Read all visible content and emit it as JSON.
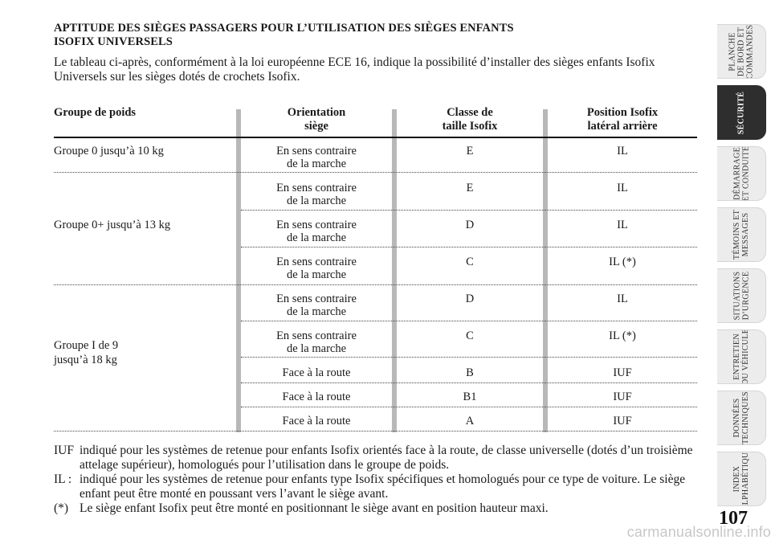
{
  "heading": {
    "line1": "APTITUDE DES SIÈGES PASSAGERS POUR L’UTILISATION DES SIÈGES ENFANTS",
    "line2": "ISOFIX UNIVERSELS"
  },
  "intro": "Le tableau ci-après, conformément à la loi européenne ECE 16, indique la possibilité d’installer des sièges enfants Isofix Universels sur les sièges dotés de crochets Isofix.",
  "table": {
    "headers": {
      "group": "Groupe de poids",
      "orientation1": "Orientation",
      "orientation2": "siège",
      "class1": "Classe de",
      "class2": "taille Isofix",
      "position1": "Position Isofix",
      "position2": "latéral arrière"
    },
    "groups": [
      "Groupe 0 jusqu’à 10 kg",
      "Groupe 0+ jusqu’à 13 kg",
      "Groupe I de 9",
      "jusqu’à 18 kg"
    ],
    "rows": [
      {
        "o1": "En sens contraire",
        "o2": "de la marche",
        "cls": "E",
        "pos": "IL"
      },
      {
        "o1": "En sens contraire",
        "o2": "de la marche",
        "cls": "E",
        "pos": "IL"
      },
      {
        "o1": "En sens contraire",
        "o2": "de la marche",
        "cls": "D",
        "pos": "IL"
      },
      {
        "o1": "En sens contraire",
        "o2": "de la marche",
        "cls": "C",
        "pos": "IL (*)"
      },
      {
        "o1": "En sens contraire",
        "o2": "de la marche",
        "cls": "D",
        "pos": "IL"
      },
      {
        "o1": "En sens contraire",
        "o2": "de la marche",
        "cls": "C",
        "pos": "IL (*)"
      },
      {
        "o1": "Face à la route",
        "o2": "",
        "cls": "B",
        "pos": "IUF"
      },
      {
        "o1": "Face à la route",
        "o2": "",
        "cls": "B1",
        "pos": "IUF"
      },
      {
        "o1": "Face à la route",
        "o2": "",
        "cls": "A",
        "pos": "IUF"
      }
    ]
  },
  "notes": {
    "iuf_key": "IUF",
    "iuf_text": "indiqué pour les systèmes de retenue pour enfants Isofix orientés face à la route, de classe universelle (dotés d’un troisième attelage supérieur), homologués pour l’utilisation dans le groupe de poids.",
    "il_key": "IL :",
    "il_text": "indiqué pour les systèmes de retenue pour enfants type Isofix spécifiques et homologués pour ce type de voiture. Le siège enfant peut être monté en poussant vers l’avant le siège avant.",
    "star_key": "(*)",
    "star_text": "Le siège enfant Isofix peut être monté en positionnant le siège avant en position hauteur maxi."
  },
  "tabs": [
    {
      "l1": "PLANCHE",
      "l2": "DE BORD ET",
      "l3": "COMMANDES"
    },
    {
      "l1": "SÉCURITÉ",
      "l2": "",
      "l3": ""
    },
    {
      "l1": "DÉMARRAGE",
      "l2": "ET CONDUITE",
      "l3": ""
    },
    {
      "l1": "TÉMOINS ET",
      "l2": "MESSAGES",
      "l3": ""
    },
    {
      "l1": "SITUATIONS",
      "l2": "D’URGENCE",
      "l3": ""
    },
    {
      "l1": "ENTRETIEN",
      "l2": "DU VÉHICULE",
      "l3": ""
    },
    {
      "l1": "DONNÉES",
      "l2": "TECHNIQUES",
      "l3": ""
    },
    {
      "l1": "INDEX",
      "l2": "ALPHABÉTIQUE",
      "l3": ""
    }
  ],
  "page_number": "107",
  "watermark": "carmanualsonline.info"
}
